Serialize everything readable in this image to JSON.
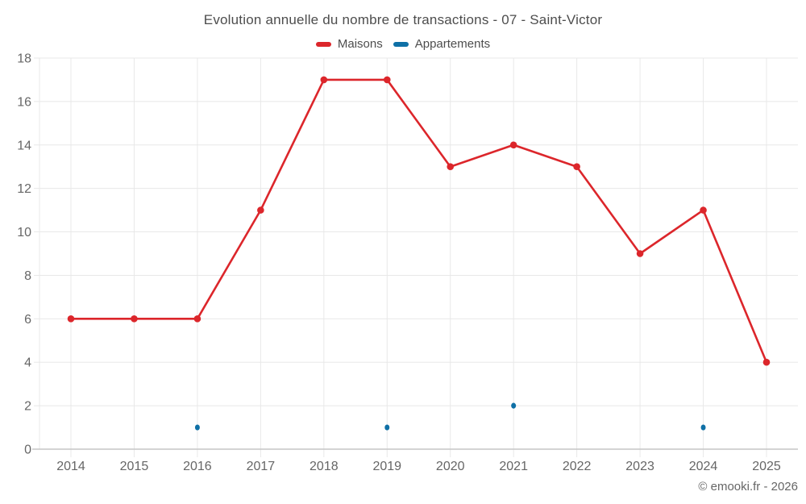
{
  "chart_data": {
    "type": "line",
    "title": "Evolution annuelle du nombre de transactions - 07 - Saint-Victor",
    "categories": [
      "2014",
      "2015",
      "2016",
      "2017",
      "2018",
      "2019",
      "2020",
      "2021",
      "2022",
      "2023",
      "2024",
      "2025"
    ],
    "series": [
      {
        "name": "Maisons",
        "color": "#dc262b",
        "draw_line": true,
        "marker": {
          "rx": 4.3,
          "ry": 4.3
        },
        "values": [
          6,
          6,
          6,
          11,
          17,
          17,
          13,
          14,
          13,
          9,
          11,
          4
        ]
      },
      {
        "name": "Appartements",
        "color": "#0f70a6",
        "draw_line": false,
        "marker": {
          "rx": 3,
          "ry": 3.6
        },
        "values": [
          null,
          null,
          1,
          null,
          null,
          1,
          null,
          2,
          null,
          null,
          1,
          null
        ]
      }
    ],
    "ylim": [
      0,
      18
    ],
    "y_ticks": [
      0,
      2,
      4,
      6,
      8,
      10,
      12,
      14,
      16,
      18
    ],
    "grid": true,
    "legend_position": "top"
  },
  "footer": {
    "copyright": "© emooki.fr - 2026"
  },
  "colors": {
    "grid": "#e8e8e8",
    "axis_line": "#c6c6c6",
    "tick_text": "#666666",
    "title_text": "#4d4d4d"
  }
}
